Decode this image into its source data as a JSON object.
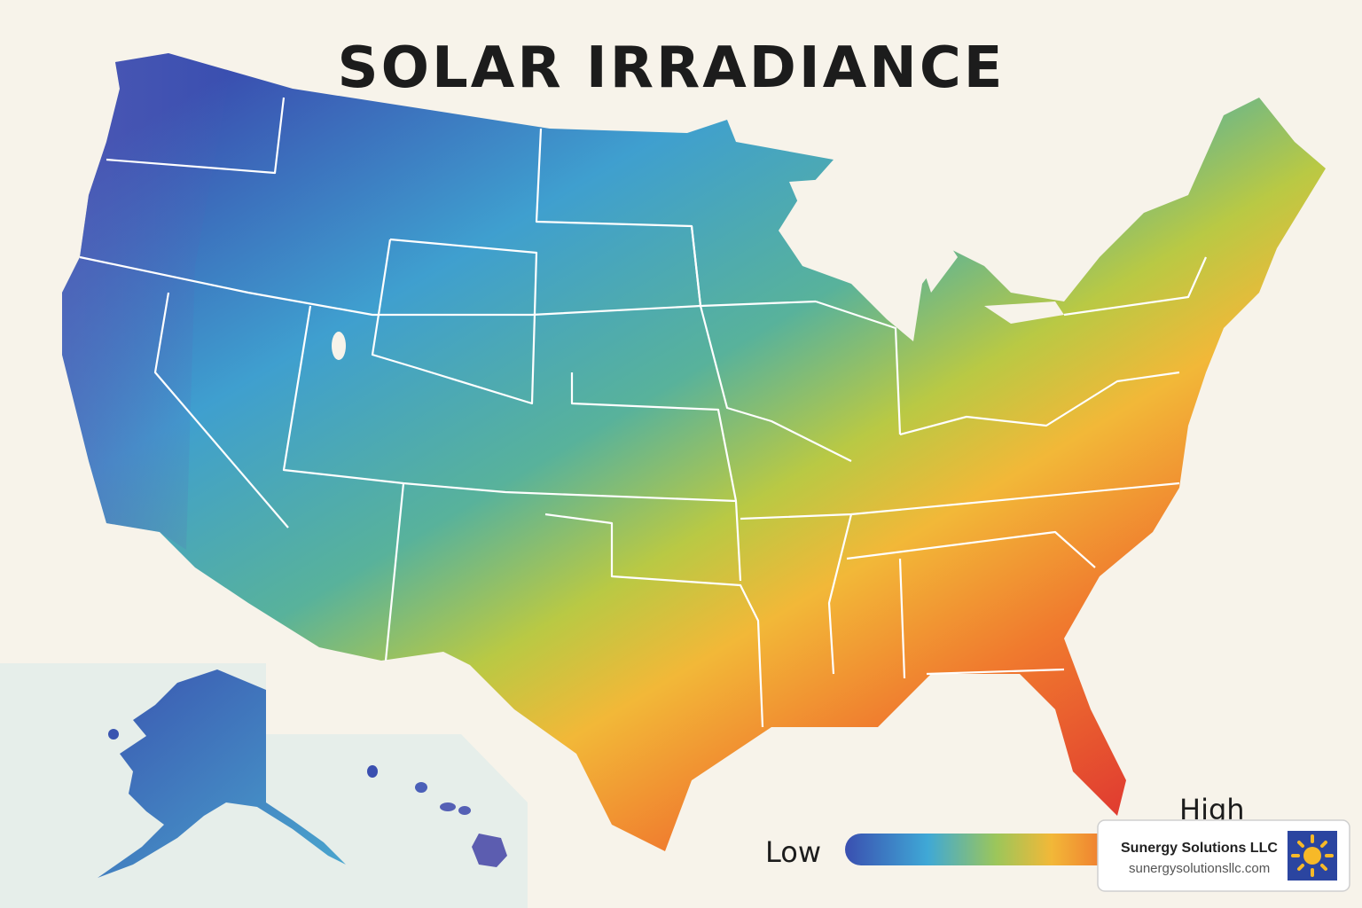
{
  "title": "SOLAR IRRADIANCE",
  "legend": {
    "low": "Low",
    "high": "High"
  },
  "badge": {
    "name": "Sunergy Solutions LLC",
    "url": "sunergysolutionsllc.com"
  }
}
